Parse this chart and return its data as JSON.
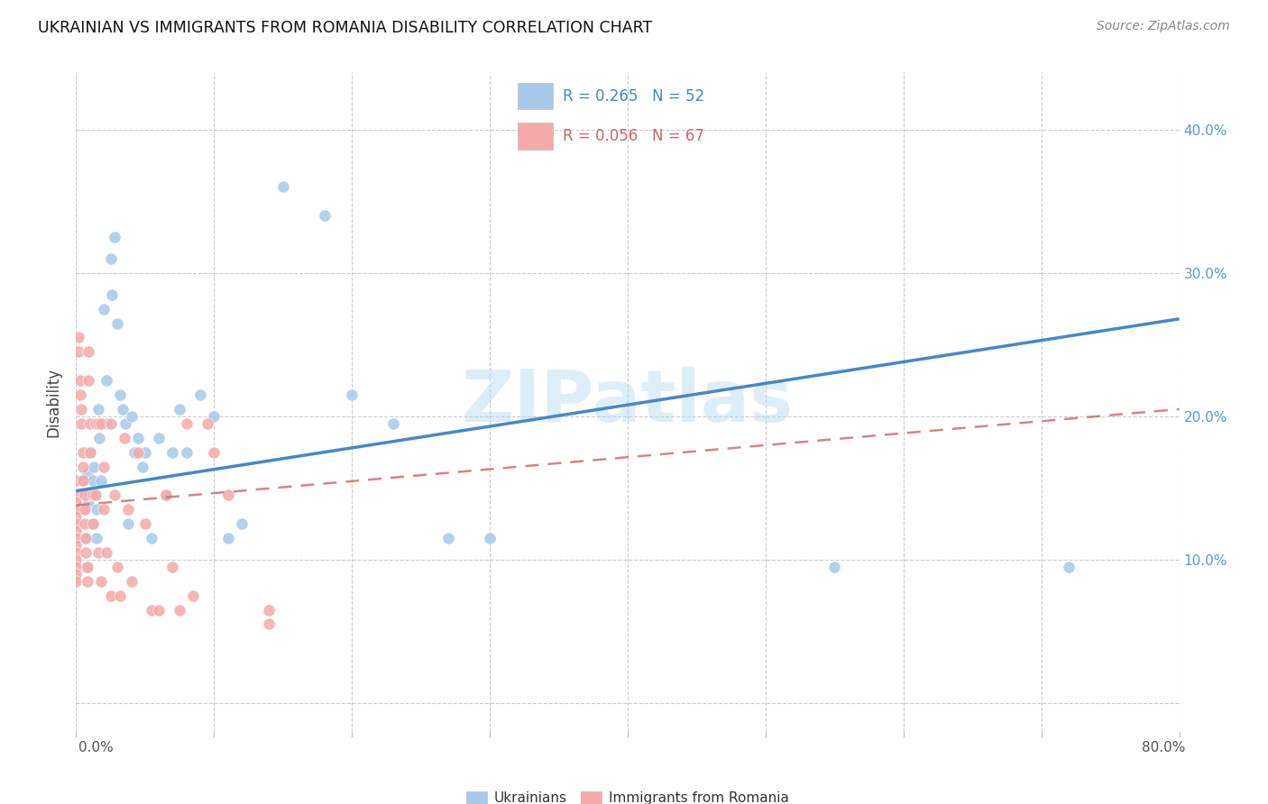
{
  "title": "UKRAINIAN VS IMMIGRANTS FROM ROMANIA DISABILITY CORRELATION CHART",
  "source": "Source: ZipAtlas.com",
  "ylabel": "Disability",
  "watermark": "ZIPatlas",
  "legend_blue_R": "R = 0.265",
  "legend_blue_N": "N = 52",
  "legend_pink_R": "R = 0.056",
  "legend_pink_N": "N = 67",
  "blue_label": "Ukrainians",
  "pink_label": "Immigrants from Romania",
  "blue_color": "#a8c8e8",
  "pink_color": "#f4aaaa",
  "blue_line_color": "#4488cc",
  "pink_line_color": "#cc6666",
  "xlim": [
    0.0,
    0.8
  ],
  "ylim": [
    -0.02,
    0.44
  ],
  "yticks": [
    0.0,
    0.1,
    0.2,
    0.3,
    0.4
  ],
  "ytick_labels": [
    "",
    "10.0%",
    "20.0%",
    "30.0%",
    "40.0%"
  ],
  "blue_scatter_x": [
    0.005,
    0.005,
    0.005,
    0.006,
    0.007,
    0.008,
    0.009,
    0.01,
    0.01,
    0.012,
    0.012,
    0.013,
    0.014,
    0.015,
    0.015,
    0.016,
    0.017,
    0.018,
    0.02,
    0.022,
    0.022,
    0.025,
    0.026,
    0.028,
    0.03,
    0.032,
    0.034,
    0.036,
    0.038,
    0.04,
    0.042,
    0.045,
    0.048,
    0.05,
    0.055,
    0.06,
    0.065,
    0.07,
    0.075,
    0.08,
    0.09,
    0.1,
    0.11,
    0.12,
    0.15,
    0.18,
    0.2,
    0.23,
    0.27,
    0.3,
    0.55,
    0.72
  ],
  "blue_scatter_y": [
    0.155,
    0.135,
    0.115,
    0.115,
    0.095,
    0.16,
    0.14,
    0.175,
    0.145,
    0.155,
    0.125,
    0.165,
    0.145,
    0.135,
    0.115,
    0.205,
    0.185,
    0.155,
    0.275,
    0.225,
    0.195,
    0.31,
    0.285,
    0.325,
    0.265,
    0.215,
    0.205,
    0.195,
    0.125,
    0.2,
    0.175,
    0.185,
    0.165,
    0.175,
    0.115,
    0.185,
    0.145,
    0.175,
    0.205,
    0.175,
    0.215,
    0.2,
    0.115,
    0.125,
    0.36,
    0.34,
    0.215,
    0.195,
    0.115,
    0.115,
    0.095,
    0.095
  ],
  "pink_scatter_x": [
    0.0,
    0.0,
    0.0,
    0.0,
    0.0,
    0.0,
    0.0,
    0.0,
    0.0,
    0.0,
    0.0,
    0.0,
    0.0,
    0.0,
    0.002,
    0.002,
    0.003,
    0.003,
    0.004,
    0.004,
    0.005,
    0.005,
    0.005,
    0.006,
    0.006,
    0.006,
    0.007,
    0.007,
    0.008,
    0.008,
    0.009,
    0.009,
    0.01,
    0.01,
    0.012,
    0.012,
    0.014,
    0.014,
    0.016,
    0.016,
    0.018,
    0.018,
    0.02,
    0.02,
    0.022,
    0.025,
    0.025,
    0.028,
    0.03,
    0.032,
    0.035,
    0.038,
    0.04,
    0.045,
    0.05,
    0.055,
    0.06,
    0.065,
    0.07,
    0.075,
    0.08,
    0.085,
    0.095,
    0.1,
    0.11,
    0.14,
    0.14
  ],
  "pink_scatter_y": [
    0.155,
    0.145,
    0.14,
    0.135,
    0.13,
    0.125,
    0.12,
    0.115,
    0.11,
    0.105,
    0.1,
    0.095,
    0.09,
    0.085,
    0.255,
    0.245,
    0.225,
    0.215,
    0.205,
    0.195,
    0.175,
    0.165,
    0.155,
    0.145,
    0.135,
    0.125,
    0.115,
    0.105,
    0.095,
    0.085,
    0.245,
    0.225,
    0.195,
    0.175,
    0.145,
    0.125,
    0.195,
    0.145,
    0.195,
    0.105,
    0.085,
    0.195,
    0.165,
    0.135,
    0.105,
    0.075,
    0.195,
    0.145,
    0.095,
    0.075,
    0.185,
    0.135,
    0.085,
    0.175,
    0.125,
    0.065,
    0.065,
    0.145,
    0.095,
    0.065,
    0.195,
    0.075,
    0.195,
    0.175,
    0.145,
    0.065,
    0.055
  ],
  "blue_line_x0": 0.0,
  "blue_line_x1": 0.8,
  "blue_line_y0": 0.148,
  "blue_line_y1": 0.268,
  "pink_line_x0": 0.0,
  "pink_line_x1": 0.8,
  "pink_line_y0": 0.138,
  "pink_line_y1": 0.205
}
